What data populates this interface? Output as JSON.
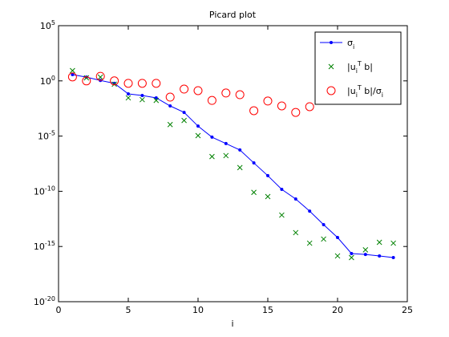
{
  "chart_data": {
    "type": "line",
    "title": "Picard plot",
    "x_label": "i",
    "x": [
      1,
      2,
      3,
      4,
      5,
      6,
      7,
      8,
      9,
      10,
      11,
      12,
      13,
      14,
      15,
      16,
      17,
      18,
      19,
      20,
      21,
      22,
      23,
      24
    ],
    "series": [
      {
        "name": "σ_i",
        "color": "#0000ff",
        "marker": "dot",
        "line": true,
        "values": [
          3.7,
          2.2,
          1.1,
          0.6,
          0.066,
          0.048,
          0.029,
          0.0054,
          0.0014,
          8e-05,
          8e-06,
          2.1e-06,
          5.5e-07,
          3.7e-08,
          2.6e-09,
          1.5e-10,
          2e-11,
          1.6e-12,
          9.5e-14,
          6.5e-15,
          2.3e-16,
          1.9e-16,
          1.4e-16,
          1e-16
        ]
      },
      {
        "name": "|u_i^T b|",
        "color": "#008000",
        "marker": "x",
        "line": false,
        "values": [
          8.5,
          1.9,
          2.2,
          0.5,
          0.029,
          0.02,
          0.017,
          0.00011,
          0.00026,
          1.1e-05,
          1.4e-07,
          1.7e-07,
          1.4e-08,
          8e-11,
          3.3e-11,
          7e-13,
          1.8e-14,
          2e-15,
          4.7e-15,
          1.4e-16,
          1e-16,
          5e-16,
          2.4e-15,
          2e-15
        ]
      },
      {
        "name": "|u_i^T b|/σ_i",
        "color": "#ff0000",
        "marker": "o",
        "line": false,
        "values": [
          2.3,
          1,
          2.6,
          1,
          0.6,
          0.6,
          0.6,
          0.034,
          0.18,
          0.13,
          0.017,
          0.08,
          0.056,
          0.002,
          0.015,
          0.0054,
          0.0014,
          0.0046,
          0.056,
          null,
          null,
          null,
          null,
          null
        ]
      }
    ],
    "xlim": [
      0,
      25
    ],
    "xticks": [
      0,
      5,
      10,
      15,
      20,
      25
    ],
    "ylim": [
      1e-20,
      100000.0
    ],
    "y_log": true,
    "yticks": [
      {
        "value": 1e-20,
        "label": "10^-20"
      },
      {
        "value": 1e-15,
        "label": "10^-15"
      },
      {
        "value": 1e-10,
        "label": "10^-10"
      },
      {
        "value": 1e-05,
        "label": "10^-5"
      },
      {
        "value": 1,
        "label": "10^0"
      },
      {
        "value": 100000.0,
        "label": "10^5"
      }
    ],
    "legend": "upper right",
    "grid": false
  }
}
